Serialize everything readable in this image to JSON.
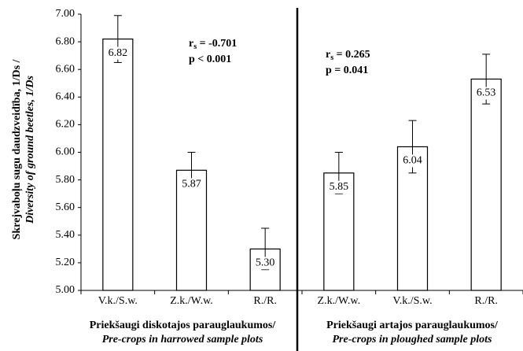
{
  "chart_data": {
    "type": "bar",
    "y_label": [
      "Skrejvaboļu sugu daudzveidība, 1/Ds /",
      "Diversity of ground beetles, 1/Ds"
    ],
    "categories": [
      "V.k./S.w.",
      "Z.k./W.w.",
      "R./R.",
      "Z.k./W.w.",
      "V.k./S.w.",
      "R./R."
    ],
    "values": [
      6.82,
      5.87,
      5.3,
      5.85,
      6.04,
      6.53
    ],
    "value_labels": [
      "6.82",
      "5.87",
      "5.30",
      "5.85",
      "6.04",
      "6.53"
    ],
    "errors": [
      0.17,
      0.13,
      0.15,
      0.15,
      0.19,
      0.18
    ],
    "color": "#ffffff",
    "ylim": [
      5,
      7
    ],
    "yticks": [
      {
        "value": 5,
        "label": "5.00"
      },
      {
        "value": 5.2,
        "label": "5.20"
      },
      {
        "value": 5.4,
        "label": "5.40"
      },
      {
        "value": 5.6,
        "label": "5.60"
      },
      {
        "value": 5.8,
        "label": "5.80"
      },
      {
        "value": 6,
        "label": "6.00"
      },
      {
        "value": 6.2,
        "label": "6.20"
      },
      {
        "value": 6.4,
        "label": "6.40"
      },
      {
        "value": 6.6,
        "label": "6.60"
      },
      {
        "value": 6.8,
        "label": "6.80"
      },
      {
        "value": 7,
        "label": "7.00"
      }
    ],
    "groups": [
      {
        "label": "Priekšaugi diskotajos parauglaukumos/",
        "sublabel": "Pre-crops in harrowed sample plots",
        "r_symbol": "r",
        "r_subscript": "s",
        "r_text": " = -0.701",
        "p_text": "p < 0.001"
      },
      {
        "label": "Priekšaugi artajos parauglaukumos/",
        "sublabel": "Pre-crops in ploughed sample plots",
        "r_symbol": "r",
        "r_subscript": "s",
        "r_text": " = 0.265",
        "p_text": "p = 0.041"
      }
    ],
    "grid": false
  }
}
